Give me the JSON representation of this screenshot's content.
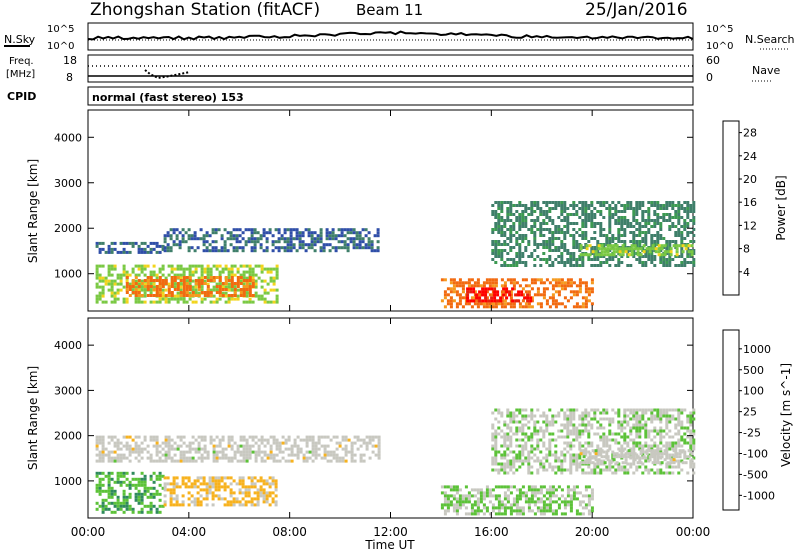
{
  "header": {
    "station": "Zhongshan Station (fitACF)",
    "beam": "Beam 11",
    "date": "25/Jan/2016"
  },
  "strip_labels": {
    "nsky": "N.Sky",
    "nsearch": "N.Search",
    "freq_line1": "Freq.",
    "freq_line2": "[MHz]",
    "nave": "Nave",
    "cpid": "CPID",
    "sky_top": "10^5",
    "sky_bottom": "10^0",
    "search_top": "10^5",
    "search_bottom": "10^0",
    "freq_top": "18",
    "freq_bottom": "8",
    "nave_top": "60",
    "nave_bottom": "0",
    "mode": "normal (fast stereo) 153"
  },
  "colors": {
    "power": [
      "#1a1aff",
      "#2f4ea8",
      "#3f7f6a",
      "#3c9a52",
      "#7ac943",
      "#f2d41c",
      "#f59a1e",
      "#f26a10",
      "#e52010",
      "#ff0000"
    ],
    "velocity": [
      "#1a33c8",
      "#2b5fa0",
      "#2f8a5c",
      "#5cc238",
      "#c8c8c0",
      "#f7b21e",
      "#f58c1e",
      "#f55a10",
      "#e51010"
    ]
  },
  "chart_data": [
    {
      "type": "heatmap",
      "title": "Power",
      "ylabel": "Slant Range [km]",
      "xlabel": "",
      "colorbar_label": "Power [dB]",
      "colorbar_ticks": [
        "4",
        "8",
        "12",
        "16",
        "20",
        "24",
        "28"
      ],
      "colorbar_range": [
        0,
        30
      ],
      "x_ticks": [
        "00:00",
        "04:00",
        "08:00",
        "12:00",
        "16:00",
        "20:00",
        "00:00"
      ],
      "xlim_hours": [
        0,
        24
      ],
      "y_ticks": [
        "1000",
        "2000",
        "3000",
        "4000"
      ],
      "ylim": [
        180,
        4600
      ],
      "regions": [
        {
          "t0": 0.3,
          "t1": 7.5,
          "r0": 400,
          "r1": 1200,
          "value": 14
        },
        {
          "t0": 1.5,
          "t1": 6.5,
          "r0": 550,
          "r1": 950,
          "value": 22
        },
        {
          "t0": 0.3,
          "t1": 3.0,
          "r0": 1450,
          "r1": 1700,
          "value": 6
        },
        {
          "t0": 3.0,
          "t1": 11.5,
          "r0": 1500,
          "r1": 2000,
          "value": 6
        },
        {
          "t0": 14.0,
          "t1": 20.0,
          "r0": 300,
          "r1": 900,
          "value": 22
        },
        {
          "t0": 15.0,
          "t1": 17.5,
          "r0": 400,
          "r1": 700,
          "value": 28
        },
        {
          "t0": 16.0,
          "t1": 24.0,
          "r0": 1200,
          "r1": 2600,
          "value": 8
        },
        {
          "t0": 19.5,
          "t1": 24.0,
          "r0": 1400,
          "r1": 1650,
          "value": 14
        }
      ]
    },
    {
      "type": "heatmap",
      "title": "Velocity",
      "ylabel": "Slant Range [km]",
      "xlabel": "Time UT",
      "colorbar_label": "Velocity [m s^-1]",
      "colorbar_ticks": [
        "1000",
        "500",
        "100",
        "25",
        "-25",
        "-100",
        "-500",
        "-1000"
      ],
      "colorbar_range": [
        -1000,
        1000
      ],
      "x_ticks": [
        "00:00",
        "04:00",
        "08:00",
        "12:00",
        "16:00",
        "20:00",
        "00:00"
      ],
      "xlim_hours": [
        0,
        24
      ],
      "y_ticks": [
        "1000",
        "2000",
        "3000",
        "4000"
      ],
      "ylim": [
        180,
        4600
      ],
      "regions": [
        {
          "t0": 0.3,
          "t1": 3.0,
          "r0": 300,
          "r1": 1200,
          "value": 300
        },
        {
          "t0": 3.0,
          "t1": 7.5,
          "r0": 500,
          "r1": 1100,
          "value": -150
        },
        {
          "t0": 0.3,
          "t1": 11.5,
          "r0": 1450,
          "r1": 2000,
          "value": 0
        },
        {
          "t0": 14.0,
          "t1": 20.0,
          "r0": 300,
          "r1": 900,
          "value": 120
        },
        {
          "t0": 16.0,
          "t1": 24.0,
          "r0": 1200,
          "r1": 2600,
          "value": 60
        },
        {
          "t0": 19.5,
          "t1": 24.0,
          "r0": 1400,
          "r1": 1700,
          "value": 0
        }
      ]
    }
  ]
}
